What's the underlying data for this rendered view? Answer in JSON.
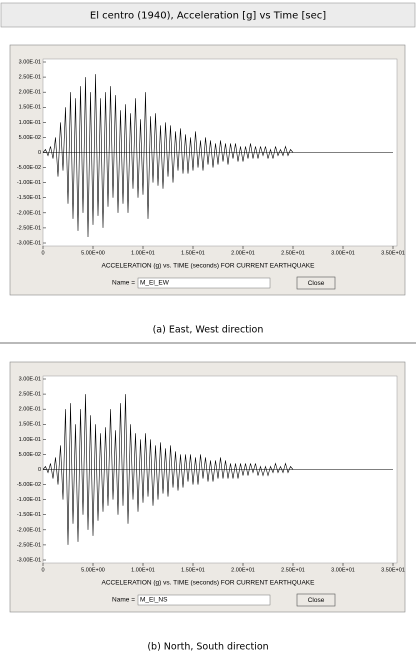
{
  "header": {
    "title": "El centro (1940), Acceleration [g] vs Time [sec]"
  },
  "chart_data": [
    {
      "type": "line",
      "xlabel": "ACCELERATION (g) vs. TIME (seconds) FOR CURRENT EARTHQUAKE",
      "xlim": [
        0,
        35
      ],
      "ylim": [
        -0.3,
        0.3
      ],
      "xticks": [
        0,
        {
          "value": 5,
          "label": "5.00E+00"
        },
        {
          "value": 10,
          "label": "1.00E+01"
        },
        {
          "value": 15,
          "label": "1.50E+01"
        },
        {
          "value": 20,
          "label": "2.00E+01"
        },
        {
          "value": 25,
          "label": "2.50E+01"
        },
        {
          "value": 30,
          "label": "3.00E+01"
        },
        {
          "value": 35,
          "label": "3.50E+01"
        }
      ],
      "yticks": [
        {
          "value": 0.3,
          "label": "3.00E-01"
        },
        {
          "value": 0.25,
          "label": "2.50E-01"
        },
        {
          "value": 0.2,
          "label": "2.00E-01"
        },
        {
          "value": 0.15,
          "label": "1.50E-01"
        },
        {
          "value": 0.1,
          "label": "1.00E-01"
        },
        {
          "value": 0.05,
          "label": "5.00E-02"
        },
        0,
        {
          "value": -0.05,
          "label": "-5.00E-02"
        },
        {
          "value": -0.1,
          "label": "-1.00E-01"
        },
        {
          "value": -0.15,
          "label": "-1.50E-01"
        },
        {
          "value": -0.2,
          "label": "-2.00E-01"
        },
        {
          "value": -0.25,
          "label": "-2.50E-01"
        },
        {
          "value": -0.3,
          "label": "-3.00E-01"
        }
      ],
      "color": "#000000",
      "x": [
        0,
        0.25,
        0.5,
        0.75,
        1,
        1.25,
        1.5,
        1.75,
        2,
        2.25,
        2.5,
        2.75,
        3,
        3.25,
        3.5,
        3.75,
        4,
        4.25,
        4.5,
        4.75,
        5,
        5.25,
        5.5,
        5.75,
        6,
        6.25,
        6.5,
        6.75,
        7,
        7.25,
        7.5,
        7.75,
        8,
        8.25,
        8.5,
        8.75,
        9,
        9.25,
        9.5,
        9.75,
        10,
        10.25,
        10.5,
        10.75,
        11,
        11.25,
        11.5,
        11.75,
        12,
        12.25,
        12.5,
        12.75,
        13,
        13.25,
        13.5,
        13.75,
        14,
        14.25,
        14.5,
        14.75,
        15,
        15.25,
        15.5,
        15.75,
        16,
        16.25,
        16.5,
        16.75,
        17,
        17.25,
        17.5,
        17.75,
        18,
        18.25,
        18.5,
        18.75,
        19,
        19.25,
        19.5,
        19.75,
        20,
        20.25,
        20.5,
        20.75,
        21,
        21.25,
        21.5,
        21.75,
        22,
        22.25,
        22.5,
        22.75,
        23,
        23.25,
        23.5,
        23.75,
        24,
        24.25,
        24.5,
        24.75,
        25
      ],
      "values": [
        0,
        0.01,
        -0.01,
        0.02,
        -0.02,
        0.05,
        -0.08,
        0.1,
        -0.06,
        0.15,
        -0.17,
        0.2,
        -0.22,
        0.18,
        -0.26,
        0.22,
        -0.2,
        0.25,
        -0.28,
        0.2,
        -0.24,
        0.26,
        -0.21,
        0.18,
        -0.25,
        0.2,
        -0.18,
        0.22,
        -0.15,
        0.19,
        -0.2,
        0.14,
        -0.17,
        0.16,
        -0.2,
        0.13,
        -0.12,
        0.18,
        -0.15,
        0.11,
        -0.14,
        0.2,
        -0.22,
        0.12,
        -0.1,
        0.13,
        -0.11,
        0.09,
        -0.12,
        0.1,
        -0.08,
        0.09,
        -0.1,
        0.07,
        -0.06,
        0.08,
        -0.07,
        0.06,
        -0.07,
        0.05,
        -0.06,
        0.07,
        -0.05,
        0.04,
        -0.06,
        0.05,
        -0.04,
        0.04,
        -0.05,
        0.03,
        -0.04,
        0.04,
        -0.03,
        0.03,
        -0.04,
        0.03,
        -0.02,
        0.03,
        -0.03,
        0.02,
        -0.03,
        0.02,
        -0.02,
        0.03,
        -0.02,
        0.02,
        -0.02,
        0.02,
        -0.01,
        0.02,
        -0.02,
        0.01,
        -0.02,
        0.02,
        -0.01,
        0.01,
        -0.01,
        0.02,
        -0.01,
        0.01,
        0
      ]
    },
    {
      "type": "line",
      "xlabel": "ACCELERATION (g) vs. TIME (seconds) FOR CURRENT EARTHQUAKE",
      "xlim": [
        0,
        35
      ],
      "ylim": [
        -0.3,
        0.3
      ],
      "xticks": [
        0,
        {
          "value": 5,
          "label": "5.00E+00"
        },
        {
          "value": 10,
          "label": "1.00E+01"
        },
        {
          "value": 15,
          "label": "1.50E+01"
        },
        {
          "value": 20,
          "label": "2.00E+01"
        },
        {
          "value": 25,
          "label": "2.50E+01"
        },
        {
          "value": 30,
          "label": "3.00E+01"
        },
        {
          "value": 35,
          "label": "3.50E+01"
        }
      ],
      "yticks": [
        {
          "value": 0.3,
          "label": "3.00E-01"
        },
        {
          "value": 0.25,
          "label": "2.50E-01"
        },
        {
          "value": 0.2,
          "label": "2.00E-01"
        },
        {
          "value": 0.15,
          "label": "1.50E-01"
        },
        {
          "value": 0.1,
          "label": "1.00E-01"
        },
        {
          "value": 0.05,
          "label": "5.00E-02"
        },
        0,
        {
          "value": -0.05,
          "label": "-5.00E-02"
        },
        {
          "value": -0.1,
          "label": "-1.00E-01"
        },
        {
          "value": -0.15,
          "label": "-1.50E-01"
        },
        {
          "value": -0.2,
          "label": "-2.00E-01"
        },
        {
          "value": -0.25,
          "label": "-2.50E-01"
        },
        {
          "value": -0.3,
          "label": "-3.00E-01"
        }
      ],
      "color": "#000000",
      "x": [
        0,
        0.25,
        0.5,
        0.75,
        1,
        1.25,
        1.5,
        1.75,
        2,
        2.25,
        2.5,
        2.75,
        3,
        3.25,
        3.5,
        3.75,
        4,
        4.25,
        4.5,
        4.75,
        5,
        5.25,
        5.5,
        5.75,
        6,
        6.25,
        6.5,
        6.75,
        7,
        7.25,
        7.5,
        7.75,
        8,
        8.25,
        8.5,
        8.75,
        9,
        9.25,
        9.5,
        9.75,
        10,
        10.25,
        10.5,
        10.75,
        11,
        11.25,
        11.5,
        11.75,
        12,
        12.25,
        12.5,
        12.75,
        13,
        13.25,
        13.5,
        13.75,
        14,
        14.25,
        14.5,
        14.75,
        15,
        15.25,
        15.5,
        15.75,
        16,
        16.25,
        16.5,
        16.75,
        17,
        17.25,
        17.5,
        17.75,
        18,
        18.25,
        18.5,
        18.75,
        19,
        19.25,
        19.5,
        19.75,
        20,
        20.25,
        20.5,
        20.75,
        21,
        21.25,
        21.5,
        21.75,
        22,
        22.25,
        22.5,
        22.75,
        23,
        23.25,
        23.5,
        23.75,
        24,
        24.25,
        24.5,
        24.75,
        25
      ],
      "values": [
        0,
        0.01,
        -0.01,
        0.02,
        -0.03,
        0.04,
        -0.05,
        0.08,
        -0.1,
        0.2,
        -0.25,
        0.22,
        -0.18,
        0.15,
        -0.24,
        0.2,
        -0.15,
        0.25,
        -0.2,
        0.18,
        -0.22,
        0.15,
        -0.17,
        0.12,
        -0.14,
        0.14,
        -0.12,
        0.2,
        -0.1,
        0.13,
        -0.15,
        0.22,
        -0.12,
        0.25,
        -0.18,
        0.15,
        -0.1,
        0.12,
        -0.14,
        0.1,
        -0.11,
        0.12,
        -0.09,
        0.1,
        -0.12,
        0.08,
        -0.1,
        0.09,
        -0.08,
        0.07,
        -0.09,
        0.08,
        -0.06,
        0.06,
        -0.07,
        0.05,
        -0.06,
        0.05,
        -0.04,
        0.05,
        -0.05,
        0.04,
        -0.05,
        0.05,
        -0.03,
        0.04,
        -0.04,
        0.03,
        -0.04,
        0.03,
        -0.03,
        0.04,
        -0.03,
        0.03,
        -0.03,
        0.02,
        -0.03,
        0.02,
        -0.03,
        0.02,
        -0.02,
        0.02,
        -0.02,
        0.02,
        -0.01,
        0.02,
        -0.02,
        0.01,
        -0.02,
        0.01,
        -0.02,
        0.01,
        -0.01,
        0.02,
        -0.01,
        0.01,
        -0.01,
        0.02,
        -0.01,
        0.01,
        0
      ]
    }
  ],
  "panels": [
    {
      "name_label": "Name =",
      "name_value": "M_El_EW",
      "button": "Close",
      "caption": "(a)  East,  West  direction"
    },
    {
      "name_label": "Name =",
      "name_value": "M_El_NS",
      "button": "Close",
      "caption": "(b)  North,  South  direction"
    }
  ]
}
